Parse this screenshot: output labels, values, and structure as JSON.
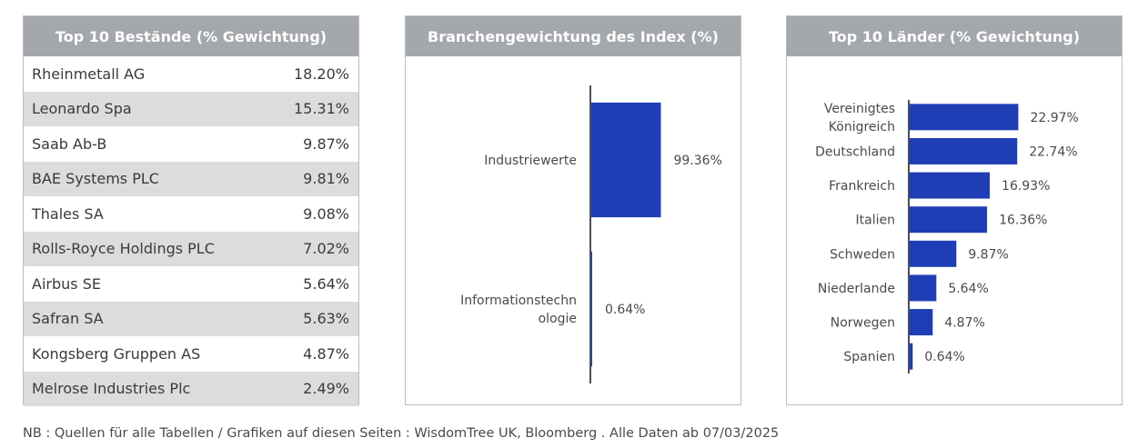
{
  "holdings": {
    "title": "Top 10 Bestände (% Gewichtung)",
    "rows": [
      {
        "name": "Rheinmetall AG",
        "weight": "18.20%"
      },
      {
        "name": "Leonardo Spa",
        "weight": "15.31%"
      },
      {
        "name": "Saab Ab-B",
        "weight": "9.87%"
      },
      {
        "name": "BAE Systems PLC",
        "weight": "9.81%"
      },
      {
        "name": "Thales SA",
        "weight": "9.08%"
      },
      {
        "name": "Rolls-Royce Holdings PLC",
        "weight": "7.02%"
      },
      {
        "name": "Airbus SE",
        "weight": "5.64%"
      },
      {
        "name": "Safran SA",
        "weight": "5.63%"
      },
      {
        "name": "Kongsberg Gruppen AS",
        "weight": "4.87%"
      },
      {
        "name": "Melrose Industries Plc",
        "weight": "2.49%"
      }
    ]
  },
  "chart_data": [
    {
      "type": "bar",
      "orientation": "horizontal",
      "title": "Branchengewichtung des Index (%)",
      "categories": [
        "Industriewerte",
        "Informationstechnologie"
      ],
      "category_lines": [
        [
          "Industriewerte"
        ],
        [
          "Informationstechn",
          "ologie"
        ]
      ],
      "values": [
        99.36,
        0.64
      ],
      "value_labels": [
        "99.36%",
        "0.64%"
      ],
      "bar_color": "#1f3eb5",
      "grid": false
    },
    {
      "type": "bar",
      "orientation": "horizontal",
      "title": "Top 10 Länder (% Gewichtung)",
      "categories": [
        "Vereinigtes Königreich",
        "Deutschland",
        "Frankreich",
        "Italien",
        "Schweden",
        "Niederlande",
        "Norwegen",
        "Spanien"
      ],
      "category_lines": [
        [
          "Vereinigtes",
          "Königreich"
        ],
        [
          "Deutschland"
        ],
        [
          "Frankreich"
        ],
        [
          "Italien"
        ],
        [
          "Schweden"
        ],
        [
          "Niederlande"
        ],
        [
          "Norwegen"
        ],
        [
          "Spanien"
        ]
      ],
      "values": [
        22.97,
        22.74,
        16.93,
        16.36,
        9.87,
        5.64,
        4.87,
        0.64
      ],
      "value_labels": [
        "22.97%",
        "22.74%",
        "16.93%",
        "16.36%",
        "9.87%",
        "5.64%",
        "4.87%",
        "0.64%"
      ],
      "bar_color": "#1f3eb5",
      "grid": false
    }
  ],
  "footnote": "NB : Quellen für alle Tabellen / Grafiken auf diesen Seiten : WisdomTree UK, Bloomberg . Alle Daten ab 07/03/2025"
}
